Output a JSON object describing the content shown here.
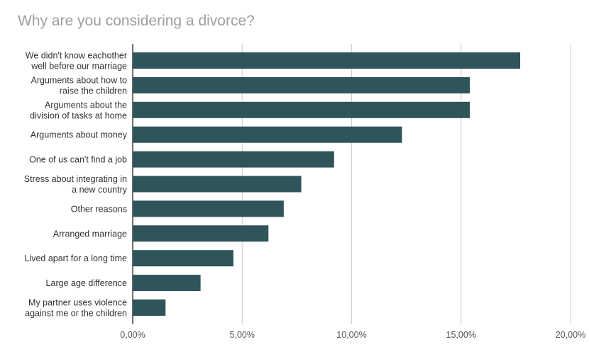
{
  "chart_data": {
    "type": "bar",
    "orientation": "horizontal",
    "title": "Why are you considering a divorce?",
    "categories": [
      [
        "We didn't know eachother",
        "well before our marriage"
      ],
      [
        "Arguments about how to",
        "raise the children"
      ],
      [
        "Arguments about the",
        "division of tasks at home"
      ],
      [
        "Arguments about money"
      ],
      [
        "One of us can't find a job"
      ],
      [
        "Stress about integrating in",
        "a new country"
      ],
      [
        "Other reasons"
      ],
      [
        "Arranged marriage"
      ],
      [
        "Lived apart for a long time"
      ],
      [
        "Large age difference"
      ],
      [
        "My partner uses violence",
        "against me or the children"
      ]
    ],
    "values": [
      17.7,
      15.4,
      15.4,
      12.3,
      9.2,
      7.7,
      6.9,
      6.2,
      4.6,
      3.1,
      1.5
    ],
    "xlim": [
      0,
      20
    ],
    "xticks": [
      "0,00%",
      "5,00%",
      "10,00%",
      "15,00%",
      "20,00%"
    ],
    "grid": true,
    "bar_color": "#2f5459",
    "grid_color": "#cccccc"
  }
}
